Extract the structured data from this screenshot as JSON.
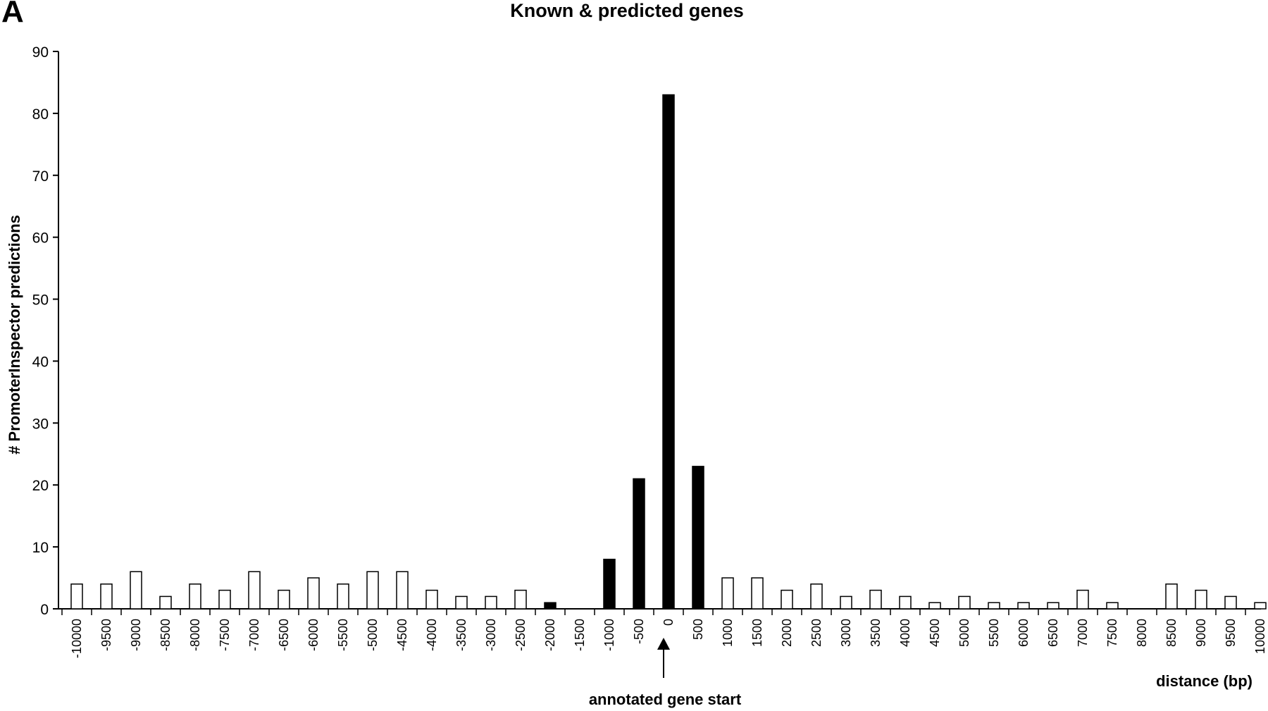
{
  "panel_label": "A",
  "chart_data": {
    "type": "bar",
    "title": "Known & predicted genes",
    "ylabel": "# PromoterInspector predictions",
    "xlabel": "distance (bp)",
    "ylim": [
      0,
      90
    ],
    "yticks": [
      0,
      10,
      20,
      30,
      40,
      50,
      60,
      70,
      80,
      90
    ],
    "categories": [
      "-10000",
      "-9500",
      "-9000",
      "-8500",
      "-8000",
      "-7500",
      "-7000",
      "-6500",
      "-6000",
      "-5500",
      "-5000",
      "-4500",
      "-4000",
      "-3500",
      "-3000",
      "-2500",
      "-2000",
      "-1500",
      "-1000",
      "-500",
      "0",
      "500",
      "1000",
      "1500",
      "2000",
      "2500",
      "3000",
      "3500",
      "4000",
      "4500",
      "5000",
      "5500",
      "6000",
      "6500",
      "7000",
      "7500",
      "8000",
      "8500",
      "9000",
      "9500",
      "10000"
    ],
    "values": [
      4,
      4,
      6,
      2,
      4,
      3,
      6,
      3,
      5,
      4,
      6,
      6,
      3,
      2,
      2,
      3,
      1,
      0,
      8,
      21,
      83,
      23,
      5,
      5,
      3,
      4,
      2,
      3,
      2,
      1,
      2,
      1,
      1,
      1,
      3,
      1,
      0,
      4,
      3,
      2,
      1
    ],
    "highlighted": [
      false,
      false,
      false,
      false,
      false,
      false,
      false,
      false,
      false,
      false,
      false,
      false,
      false,
      false,
      false,
      false,
      true,
      false,
      true,
      true,
      true,
      true,
      false,
      false,
      false,
      false,
      false,
      false,
      false,
      false,
      false,
      false,
      false,
      false,
      false,
      false,
      false,
      false,
      false,
      false,
      false
    ],
    "grid": false,
    "annotation": "annotated gene start",
    "annotation_category": "0"
  }
}
